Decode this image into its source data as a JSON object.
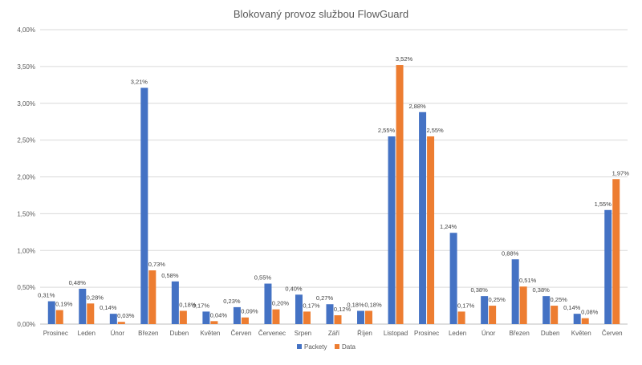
{
  "chart_data": {
    "type": "bar",
    "title": "Blokovaný provoz službou FlowGuard",
    "xlabel": "",
    "ylabel": "",
    "categories": [
      "Prosinec",
      "Leden",
      "Únor",
      "Březen",
      "Duben",
      "Květen",
      "Červen",
      "Červenec",
      "Srpen",
      "Září",
      "Říjen",
      "Listopad",
      "Prosinec",
      "Leden",
      "Únor",
      "Březen",
      "Duben",
      "Květen",
      "Červen"
    ],
    "series": [
      {
        "name": "Packety",
        "color": "#4472C4",
        "values": [
          0.31,
          0.48,
          0.14,
          3.21,
          0.58,
          0.17,
          0.23,
          0.55,
          0.4,
          0.27,
          0.18,
          2.55,
          2.88,
          1.24,
          0.38,
          0.88,
          0.38,
          0.14,
          1.55
        ],
        "labels": [
          "0,31%",
          "0,48%",
          "0,14%",
          "3,21%",
          "0,58%",
          "0,17%",
          "0,23%",
          "0,55%",
          "0,40%",
          "0,27%",
          "0,18%",
          "2,55%",
          "2,88%",
          "1,24%",
          "0,38%",
          "0,88%",
          "0,38%",
          "0,14%",
          "1,55%"
        ]
      },
      {
        "name": "Data",
        "color": "#ED7D31",
        "values": [
          0.19,
          0.28,
          0.03,
          0.73,
          0.18,
          0.04,
          0.09,
          0.2,
          0.17,
          0.12,
          0.18,
          3.52,
          2.55,
          0.17,
          0.25,
          0.51,
          0.25,
          0.08,
          1.97
        ],
        "labels": [
          "0,19%",
          "0,28%",
          "0,03%",
          "0,73%",
          "0,18%",
          "0,04%",
          "0,09%",
          "0,20%",
          "0,17%",
          "0,12%",
          "0,18%",
          "3,52%",
          "2,55%",
          "0,17%",
          "0,25%",
          "0,51%",
          "0,25%",
          "0,08%",
          "1,97%"
        ]
      }
    ],
    "ylim": [
      0,
      4
    ],
    "yticks": [
      0,
      0.5,
      1,
      1.5,
      2,
      2.5,
      3,
      3.5,
      4
    ],
    "ytick_labels": [
      "0,00%",
      "0,50%",
      "1,00%",
      "1,50%",
      "2,00%",
      "2,50%",
      "3,00%",
      "3,50%",
      "4,00%"
    ],
    "grid": true,
    "legend_position": "bottom"
  }
}
